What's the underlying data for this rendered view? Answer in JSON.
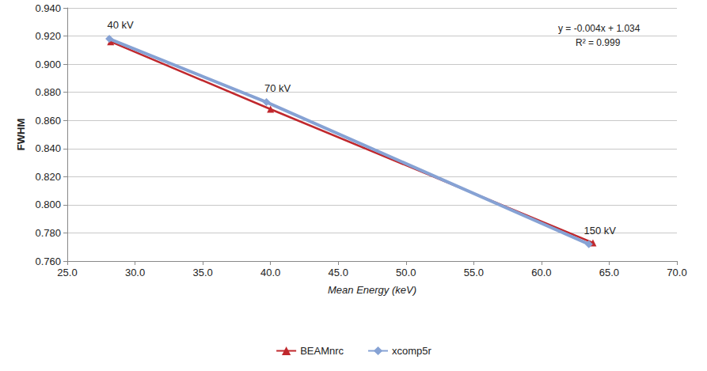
{
  "chart_data": {
    "type": "line",
    "x_label": "Mean Energy (keV)",
    "y_label": "FWHM",
    "xlim": [
      25,
      70
    ],
    "xticks": [
      {
        "value": 25,
        "label": "25.0"
      },
      {
        "value": 30,
        "label": "30.0"
      },
      {
        "value": 35,
        "label": "35.0"
      },
      {
        "value": 40,
        "label": "40.0"
      },
      {
        "value": 45,
        "label": "45.0"
      },
      {
        "value": 50,
        "label": "50.0"
      },
      {
        "value": 55,
        "label": "55.0"
      },
      {
        "value": 60,
        "label": "60.0"
      },
      {
        "value": 65,
        "label": "65.0"
      },
      {
        "value": 70,
        "label": "70.0"
      }
    ],
    "ylim": [
      0.76,
      0.94
    ],
    "yticks": [
      {
        "value": 0.76,
        "label": "0.760"
      },
      {
        "value": 0.78,
        "label": "0.780"
      },
      {
        "value": 0.8,
        "label": "0.800"
      },
      {
        "value": 0.82,
        "label": "0.820"
      },
      {
        "value": 0.84,
        "label": "0.840"
      },
      {
        "value": 0.86,
        "label": "0.860"
      },
      {
        "value": 0.88,
        "label": "0.880"
      },
      {
        "value": 0.9,
        "label": "0.900"
      },
      {
        "value": 0.92,
        "label": "0.920"
      },
      {
        "value": 0.94,
        "label": "0.940"
      }
    ],
    "grid": true,
    "legend": "bottom",
    "series": [
      {
        "name": "BEAMnrc",
        "color": "#c0282d",
        "marker": "triangle",
        "line_style": "solid",
        "x": [
          28.2,
          40.0,
          63.8
        ],
        "values": [
          0.916,
          0.868,
          0.773
        ]
      },
      {
        "name": "xcomp5r",
        "color": "#86a2d4",
        "marker": "diamond",
        "line_style": "solid",
        "x": [
          28.1,
          39.7,
          63.5
        ],
        "values": [
          0.918,
          0.873,
          0.772
        ],
        "point_labels": [
          "40 kV",
          "70 kV",
          "150 kV"
        ]
      }
    ],
    "trendline_text": [
      "y = -0.004x + 1.034",
      "R² = 0.999"
    ]
  }
}
